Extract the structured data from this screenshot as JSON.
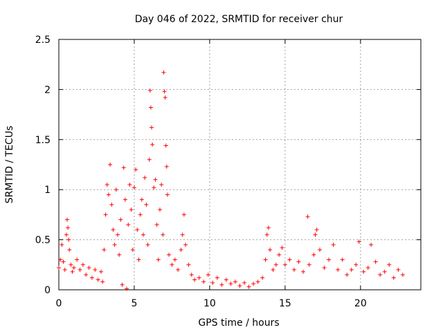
{
  "chart_data": {
    "type": "scatter",
    "title": "Day 046 of 2022, SRMTID for receiver chur",
    "xlabel": "GPS time / hours",
    "ylabel": "SRMTID / TECUs",
    "xlim": [
      0,
      24
    ],
    "ylim": [
      0,
      2.5
    ],
    "xticks": [
      0,
      5,
      10,
      15,
      20
    ],
    "xtick_labels": [
      "0",
      "5",
      "10",
      "15",
      "20"
    ],
    "yticks": [
      0,
      0.5,
      1,
      1.5,
      2,
      2.5
    ],
    "ytick_labels": [
      "0",
      "0.5",
      "1",
      "1.5",
      "2",
      "2.5"
    ],
    "grid": true,
    "marker": "+",
    "color": "#ff0000",
    "series": [
      {
        "name": "SRMTID",
        "points": [
          [
            0.0,
            0.22
          ],
          [
            0.1,
            0.3
          ],
          [
            0.2,
            0.45
          ],
          [
            0.3,
            0.28
          ],
          [
            0.4,
            0.2
          ],
          [
            0.5,
            0.55
          ],
          [
            0.55,
            0.7
          ],
          [
            0.6,
            0.62
          ],
          [
            0.65,
            0.5
          ],
          [
            0.7,
            0.4
          ],
          [
            0.8,
            0.25
          ],
          [
            0.9,
            0.18
          ],
          [
            1.0,
            0.22
          ],
          [
            1.2,
            0.3
          ],
          [
            1.4,
            0.2
          ],
          [
            1.6,
            0.25
          ],
          [
            1.8,
            0.15
          ],
          [
            2.0,
            0.22
          ],
          [
            2.2,
            0.12
          ],
          [
            2.4,
            0.2
          ],
          [
            2.6,
            0.1
          ],
          [
            2.8,
            0.18
          ],
          [
            2.9,
            0.08
          ],
          [
            3.0,
            0.4
          ],
          [
            3.1,
            0.75
          ],
          [
            3.2,
            1.05
          ],
          [
            3.3,
            0.95
          ],
          [
            3.4,
            1.25
          ],
          [
            3.5,
            0.85
          ],
          [
            3.6,
            0.6
          ],
          [
            3.7,
            0.45
          ],
          [
            3.8,
            1.0
          ],
          [
            3.9,
            0.55
          ],
          [
            4.0,
            0.35
          ],
          [
            4.1,
            0.7
          ],
          [
            4.2,
            0.05
          ],
          [
            4.3,
            1.22
          ],
          [
            4.4,
            0.9
          ],
          [
            4.5,
            0.01
          ],
          [
            4.6,
            0.65
          ],
          [
            4.7,
            1.05
          ],
          [
            4.8,
            0.8
          ],
          [
            4.9,
            0.4
          ],
          [
            5.0,
            1.02
          ],
          [
            5.1,
            1.2
          ],
          [
            5.2,
            0.6
          ],
          [
            5.3,
            0.3
          ],
          [
            5.4,
            0.75
          ],
          [
            5.5,
            0.9
          ],
          [
            5.6,
            0.55
          ],
          [
            5.7,
            1.12
          ],
          [
            5.8,
            0.85
          ],
          [
            5.9,
            0.45
          ],
          [
            6.0,
            1.3
          ],
          [
            6.05,
            1.99
          ],
          [
            6.1,
            1.82
          ],
          [
            6.15,
            1.62
          ],
          [
            6.2,
            1.45
          ],
          [
            6.3,
            1.02
          ],
          [
            6.4,
            1.1
          ],
          [
            6.5,
            0.65
          ],
          [
            6.6,
            0.3
          ],
          [
            6.7,
            0.8
          ],
          [
            6.8,
            1.05
          ],
          [
            6.9,
            0.55
          ],
          [
            6.95,
            2.17
          ],
          [
            7.0,
            1.98
          ],
          [
            7.05,
            1.92
          ],
          [
            7.1,
            1.44
          ],
          [
            7.15,
            1.23
          ],
          [
            7.2,
            0.95
          ],
          [
            7.3,
            0.35
          ],
          [
            7.5,
            0.25
          ],
          [
            7.7,
            0.3
          ],
          [
            7.9,
            0.2
          ],
          [
            8.1,
            0.4
          ],
          [
            8.2,
            0.55
          ],
          [
            8.3,
            0.75
          ],
          [
            8.4,
            0.45
          ],
          [
            8.6,
            0.25
          ],
          [
            8.8,
            0.15
          ],
          [
            9.0,
            0.1
          ],
          [
            9.3,
            0.12
          ],
          [
            9.6,
            0.08
          ],
          [
            9.9,
            0.15
          ],
          [
            10.2,
            0.07
          ],
          [
            10.5,
            0.12
          ],
          [
            10.8,
            0.05
          ],
          [
            11.1,
            0.1
          ],
          [
            11.4,
            0.06
          ],
          [
            11.7,
            0.08
          ],
          [
            12.0,
            0.04
          ],
          [
            12.3,
            0.07
          ],
          [
            12.6,
            0.03
          ],
          [
            12.9,
            0.06
          ],
          [
            13.2,
            0.08
          ],
          [
            13.5,
            0.12
          ],
          [
            13.7,
            0.3
          ],
          [
            13.8,
            0.55
          ],
          [
            13.9,
            0.62
          ],
          [
            14.0,
            0.4
          ],
          [
            14.2,
            0.2
          ],
          [
            14.4,
            0.25
          ],
          [
            14.6,
            0.35
          ],
          [
            14.8,
            0.42
          ],
          [
            15.0,
            0.25
          ],
          [
            15.3,
            0.3
          ],
          [
            15.6,
            0.2
          ],
          [
            15.9,
            0.28
          ],
          [
            16.2,
            0.18
          ],
          [
            16.5,
            0.73
          ],
          [
            16.6,
            0.25
          ],
          [
            16.9,
            0.35
          ],
          [
            17.0,
            0.55
          ],
          [
            17.1,
            0.6
          ],
          [
            17.3,
            0.4
          ],
          [
            17.6,
            0.22
          ],
          [
            17.9,
            0.3
          ],
          [
            18.2,
            0.45
          ],
          [
            18.5,
            0.2
          ],
          [
            18.8,
            0.3
          ],
          [
            19.1,
            0.15
          ],
          [
            19.4,
            0.2
          ],
          [
            19.7,
            0.25
          ],
          [
            19.9,
            0.48
          ],
          [
            20.2,
            0.18
          ],
          [
            20.5,
            0.22
          ],
          [
            20.7,
            0.45
          ],
          [
            21.0,
            0.28
          ],
          [
            21.3,
            0.15
          ],
          [
            21.6,
            0.18
          ],
          [
            21.9,
            0.25
          ],
          [
            22.2,
            0.12
          ],
          [
            22.5,
            0.2
          ],
          [
            22.8,
            0.15
          ]
        ]
      }
    ]
  }
}
